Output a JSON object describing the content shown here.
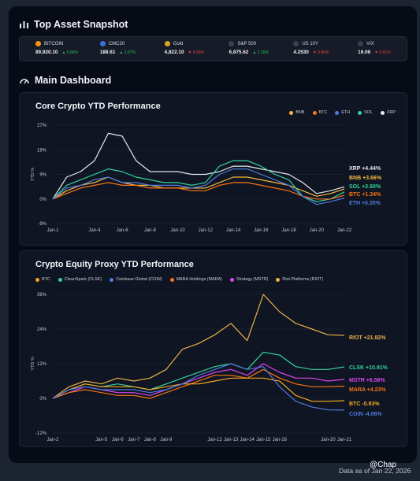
{
  "snapshot": {
    "title": "Top Asset Snapshot",
    "tickers": [
      {
        "name": "BITCOIN",
        "value": "89,920.10",
        "change": "0.66%",
        "color": "#22c55e",
        "icon_color": "#f7931a",
        "icon": "bitcoin-icon"
      },
      {
        "name": "CMC20",
        "value": "188.61",
        "change": "1.07%",
        "color": "#22c55e",
        "icon_color": "#3b6fe0",
        "icon": "cmc-icon"
      },
      {
        "name": "Gold",
        "value": "4,822.10",
        "change": "0.26%",
        "color": "#ef4444",
        "icon_color": "#e0a32a",
        "icon": "gold-bar-icon"
      },
      {
        "name": "S&P 500",
        "value": "6,875.62",
        "change": "1.16%",
        "color": "#22c55e",
        "icon_color": "#3a3f4c",
        "icon": "sp500-icon"
      },
      {
        "name": "US 10Y",
        "value": "4.2530",
        "change": "0.86%",
        "color": "#ef4444",
        "icon_color": "#3a3f4c",
        "icon": "us-flag-icon"
      },
      {
        "name": "VIX",
        "value": "16.06",
        "change": "6.61%",
        "color": "#ef4444",
        "icon_color": "#3a3f4c",
        "icon": "vix-icon"
      }
    ]
  },
  "dashboard": {
    "title": "Main Dashboard"
  },
  "footer": {
    "text": "Data as of Jan 22, 2026",
    "watermark": "@Chap"
  },
  "chart_data": [
    {
      "type": "line",
      "title": "Core Crypto YTD Performance",
      "ylabel": "YTD %",
      "yticks": [
        "27%",
        "18%",
        "9%",
        "0%",
        "-9%"
      ],
      "ylim": [
        -9,
        27
      ],
      "x": [
        "Jan-1",
        "Jan-2",
        "Jan-3",
        "Jan-4",
        "Jan-5",
        "Jan-6",
        "Jan-7",
        "Jan-8",
        "Jan-9",
        "Jan-10",
        "Jan-11",
        "Jan-12",
        "Jan-13",
        "Jan-14",
        "Jan-15",
        "Jan-16",
        "Jan-17",
        "Jan-18",
        "Jan-19",
        "Jan-20",
        "Jan-21",
        "Jan-22"
      ],
      "xticks": [
        "Jan-1",
        "Jan-4",
        "Jan-6",
        "Jan-8",
        "Jan-10",
        "Jan-12",
        "Jan-14",
        "Jan-16",
        "Jan-18",
        "Jan-20",
        "Jan-22"
      ],
      "legend": [
        "BNB",
        "BTC",
        "ETH",
        "SOL",
        "XRP"
      ],
      "series": [
        {
          "name": "XRP",
          "color": "#e5e7eb",
          "label": "XRP +4.44%",
          "values": [
            0,
            8,
            10,
            14,
            24,
            23,
            14,
            10,
            10,
            10,
            9,
            9,
            10,
            12,
            12,
            11,
            10,
            9,
            6,
            2,
            3,
            4.44
          ]
        },
        {
          "name": "BNB",
          "color": "#f5b942",
          "label": "BNB +3.66%",
          "values": [
            0,
            3,
            5,
            6,
            8,
            6,
            5,
            5,
            4,
            4,
            4,
            4,
            6,
            8,
            8,
            7,
            6,
            5,
            3,
            1,
            2,
            3.66
          ]
        },
        {
          "name": "SOL",
          "color": "#34d399",
          "label": "SOL +2.60%",
          "values": [
            0,
            5,
            7,
            9,
            11,
            10,
            8,
            7,
            6,
            6,
            5,
            6,
            12,
            14,
            14,
            12,
            9,
            7,
            1,
            -1,
            0,
            2.6
          ]
        },
        {
          "name": "BTC",
          "color": "#f97316",
          "label": "BTC +1.34%",
          "values": [
            0,
            2,
            4,
            5,
            6,
            5,
            5,
            4,
            4,
            4,
            3,
            3,
            5,
            6,
            6,
            5,
            4,
            3,
            1,
            0,
            0,
            1.34
          ]
        },
        {
          "name": "ETH",
          "color": "#4f7bdc",
          "label": "ETH +0.35%",
          "values": [
            0,
            4,
            5,
            7,
            8,
            6,
            6,
            5,
            5,
            5,
            4,
            5,
            9,
            11,
            11,
            9,
            7,
            5,
            1,
            -2,
            -1,
            0.35
          ]
        }
      ]
    },
    {
      "type": "line",
      "title": "Crypto Equity Proxy YTD Performance",
      "ylabel": "YTD %",
      "yticks": [
        "36%",
        "24%",
        "12%",
        "0%",
        "-12%"
      ],
      "ylim": [
        -12,
        36
      ],
      "x": [
        "Jan-2",
        "Jan-3",
        "Jan-4",
        "Jan-5",
        "Jan-6",
        "Jan-7",
        "Jan-8",
        "Jan-9",
        "Jan-10",
        "Jan-11",
        "Jan-12",
        "Jan-13",
        "Jan-14",
        "Jan-15",
        "Jan-16",
        "Jan-17",
        "Jan-18",
        "Jan-20",
        "Jan-21"
      ],
      "xticks": [
        "Jan-2",
        "Jan-5",
        "Jan-6",
        "Jan-7",
        "Jan-8",
        "Jan-9",
        "Jan-12",
        "Jan-13",
        "Jan-14",
        "Jan-15",
        "Jan-16",
        "Jan-20",
        "Jan-21"
      ],
      "legend": [
        "BTC",
        "CleanSpark (CLSK)",
        "Coinbase Global (COIN)",
        "MARA Holdings (MARA)",
        "Strategy (MSTR)",
        "Riot Platforms (RIOT)"
      ],
      "series": [
        {
          "name": "RIOT",
          "color": "#e8b04a",
          "label": "RIOT +21.82%",
          "values": [
            0,
            4,
            6,
            5,
            7,
            6,
            7,
            10,
            17,
            19,
            22,
            26,
            20,
            36,
            30,
            26,
            24,
            22,
            21.82
          ]
        },
        {
          "name": "CLSK",
          "color": "#34d399",
          "label": "CLSK +10.91%",
          "values": [
            0,
            3,
            5,
            4,
            5,
            4,
            3,
            5,
            7,
            9,
            11,
            12,
            10,
            16,
            15,
            11,
            10,
            10,
            10.91
          ]
        },
        {
          "name": "MSTR",
          "color": "#d946ef",
          "label": "MSTR +6.56%",
          "values": [
            0,
            2,
            4,
            3,
            2,
            2,
            1,
            3,
            5,
            7,
            9,
            10,
            8,
            12,
            9,
            7,
            7,
            6,
            6.56
          ]
        },
        {
          "name": "MARA",
          "color": "#f97316",
          "label": "MARA +4.23%",
          "values": [
            0,
            2,
            3,
            2,
            1,
            1,
            0,
            2,
            4,
            6,
            8,
            8,
            7,
            10,
            7,
            5,
            4,
            4,
            4.23
          ]
        },
        {
          "name": "BTC",
          "color": "#f5a623",
          "label": "BTC -0.83%",
          "values": [
            0,
            3,
            5,
            4,
            4,
            4,
            3,
            4,
            5,
            5,
            6,
            7,
            7,
            7,
            6,
            1,
            -1,
            -1,
            -0.83
          ]
        },
        {
          "name": "COIN",
          "color": "#4f7bdc",
          "label": "COIN -4.06%",
          "values": [
            0,
            3,
            4,
            3,
            3,
            3,
            2,
            3,
            5,
            8,
            10,
            12,
            10,
            11,
            4,
            -1,
            -3,
            -4,
            -4.06
          ]
        }
      ]
    }
  ]
}
